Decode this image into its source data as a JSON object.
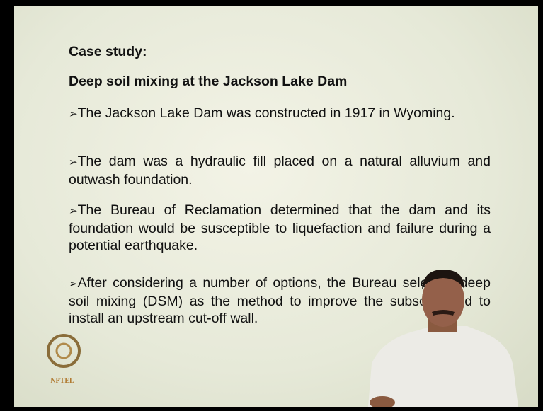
{
  "slide": {
    "title": "Case study:",
    "heading": "Deep soil mixing at the Jackson Lake Dam",
    "bullets": [
      "The Jackson Lake Dam was constructed in 1917 in Wyoming.",
      "The dam was a hydraulic fill placed on a natural alluvium and outwash foundation.",
      "The Bureau of Reclamation determined that the dam and its foundation would be susceptible to liquefaction and failure during a potential earthquake.",
      "After considering a number of options, the Bureau selected deep soil mixing (DSM) as the method to improve the subsoil's and to install an upstream cut-off wall."
    ],
    "logo": "NPTEL"
  }
}
